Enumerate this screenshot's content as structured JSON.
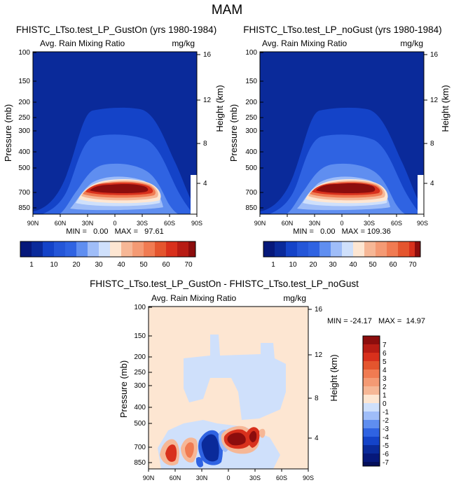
{
  "page_title": "MAM",
  "colors": {
    "deep_blue": "#0a2a9a",
    "blue1": "#1443c8",
    "blue2": "#2f63e2",
    "blue3": "#5f8ef0",
    "blue4": "#9fbdf8",
    "pale_blue": "#cfe0fb",
    "cream": "#fde6d2",
    "peach": "#f6b796",
    "orange": "#f07b52",
    "red": "#d8301c",
    "dark_red": "#8c0d0d"
  },
  "chart_data": [
    {
      "id": "panel1",
      "type": "heatmap",
      "title": "FHISTC_LTso.test_LP_GustOn (yrs 1980-1984)",
      "left_label": "Avg. Rain Mixing Ratio",
      "right_label": "mg/kg",
      "ylabel": "Pressure (mb)",
      "y2label": "Height (km)",
      "x_ticks": [
        "90N",
        "60N",
        "30N",
        "0",
        "30S",
        "60S",
        "90S"
      ],
      "y_ticks": [
        "100",
        "150",
        "200",
        "250",
        "300",
        "400",
        "500",
        "700",
        "850"
      ],
      "y2_ticks": [
        "16",
        "12",
        "8",
        "4"
      ],
      "stats": "MIN =   0.00   MAX =   97.61",
      "colorbar_labels": [
        "1",
        "10",
        "20",
        "30",
        "40",
        "50",
        "60",
        "70"
      ]
    },
    {
      "id": "panel2",
      "type": "heatmap",
      "title": "FHISTC_LTso.test_LP_noGust (yrs 1980-1984)",
      "left_label": "Avg. Rain Mixing Ratio",
      "right_label": "mg/kg",
      "ylabel": "Pressure (mb)",
      "y2label": "Height (km)",
      "x_ticks": [
        "90N",
        "60N",
        "30N",
        "0",
        "30S",
        "60S",
        "90S"
      ],
      "y_ticks": [
        "100",
        "150",
        "200",
        "250",
        "300",
        "400",
        "500",
        "700",
        "850"
      ],
      "y2_ticks": [
        "16",
        "12",
        "8",
        "4"
      ],
      "stats": "MIN =   0.00   MAX = 109.36",
      "colorbar_labels": [
        "1",
        "10",
        "20",
        "30",
        "40",
        "50",
        "60",
        "70"
      ]
    },
    {
      "id": "panel3",
      "type": "heatmap",
      "title": "FHISTC_LTso.test_LP_GustOn - FHISTC_LTso.test_LP_noGust",
      "left_label": "Avg. Rain Mixing Ratio",
      "right_label": "mg/kg",
      "ylabel": "Pressure (mb)",
      "y2label": "Height (km)",
      "x_ticks": [
        "90N",
        "60N",
        "30N",
        "0",
        "30S",
        "60S",
        "90S"
      ],
      "y_ticks": [
        "100",
        "150",
        "200",
        "250",
        "300",
        "400",
        "500",
        "700",
        "850"
      ],
      "y2_ticks": [
        "16",
        "12",
        "8",
        "4"
      ],
      "stats": "MIN = -24.17   MAX =  14.97",
      "colorbar_labels": [
        "7",
        "6",
        "5",
        "4",
        "3",
        "2",
        "1",
        "0",
        "-1",
        "-2",
        "-3",
        "-4",
        "-5",
        "-6",
        "-7"
      ]
    }
  ]
}
